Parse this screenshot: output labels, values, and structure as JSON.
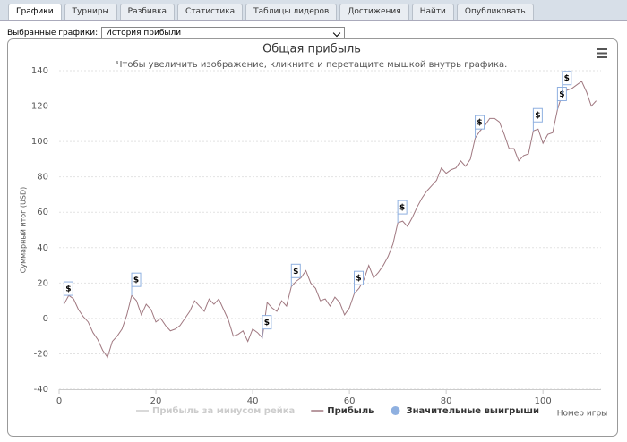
{
  "tabs": [
    "Графики",
    "Турниры",
    "Разбивка",
    "Статистика",
    "Таблицы лидеров",
    "Достижения",
    "Найти",
    "Опубликовать"
  ],
  "selector": {
    "label": "Выбранные графики:",
    "value": "История прибыли"
  },
  "chart_data": {
    "type": "line",
    "title": "Общая прибыль",
    "subtitle": "Чтобы увеличить изображение, кликните и перетащите мышкой внутрь графика.",
    "x_label": "Номер игры",
    "y_label": "Суммарный итог (USD)",
    "x": [
      1,
      2,
      3,
      4,
      5,
      6,
      7,
      8,
      9,
      10,
      11,
      12,
      13,
      14,
      15,
      16,
      17,
      18,
      19,
      20,
      21,
      22,
      23,
      24,
      25,
      26,
      27,
      28,
      29,
      30,
      31,
      32,
      33,
      34,
      35,
      36,
      37,
      38,
      39,
      40,
      41,
      42,
      43,
      44,
      45,
      46,
      47,
      48,
      49,
      50,
      51,
      52,
      53,
      54,
      55,
      56,
      57,
      58,
      59,
      60,
      61,
      62,
      63,
      64,
      65,
      66,
      67,
      68,
      69,
      70,
      71,
      72,
      73,
      74,
      75,
      76,
      77,
      78,
      79,
      80,
      81,
      82,
      83,
      84,
      85,
      86,
      87,
      88,
      89,
      90,
      91,
      92,
      93,
      94,
      95,
      96,
      97,
      98,
      99,
      100,
      101,
      102,
      103,
      104,
      105,
      106,
      107,
      108,
      109,
      110,
      111
    ],
    "series": [
      {
        "name": "Прибыль за минусом рейка",
        "color": "#cccccc",
        "visible": false
      },
      {
        "name": "Прибыль",
        "color": "#a07880",
        "values": [
          8,
          13,
          11,
          5,
          1,
          -2,
          -8,
          -12,
          -18,
          -22,
          -13,
          -10,
          -6,
          2,
          13,
          10,
          2,
          8,
          5,
          -2,
          0,
          -4,
          -7,
          -6,
          -4,
          0,
          4,
          10,
          7,
          4,
          11,
          8,
          11,
          5,
          -1,
          -10,
          -9,
          -7,
          -13,
          -6,
          -8,
          -11,
          9,
          6,
          4,
          10,
          7,
          18,
          21,
          23,
          27,
          20,
          17,
          10,
          11,
          7,
          12,
          9,
          2,
          6,
          14,
          17,
          22,
          30,
          23,
          26,
          30,
          35,
          42,
          54,
          55,
          52,
          57,
          63,
          68,
          72,
          75,
          78,
          85,
          82,
          84,
          85,
          89,
          86,
          90,
          102,
          106,
          109,
          113,
          113,
          111,
          104,
          96,
          96,
          89,
          92,
          93,
          106,
          107,
          99,
          104,
          105,
          118,
          127,
          129,
          130,
          132,
          134,
          128,
          120,
          123
        ]
      },
      {
        "name": "Значительные выигрыши",
        "type": "scatter",
        "color": "#8fb0e0",
        "flag_label": "$",
        "x": [
          1,
          15,
          42,
          48,
          61,
          70,
          86,
          98,
          103,
          104
        ],
        "values": [
          8,
          13,
          -11,
          18,
          14,
          54,
          102,
          106,
          118,
          127
        ]
      }
    ],
    "xlim": [
      0,
      112
    ],
    "ylim": [
      -40,
      140
    ],
    "xticks": [
      0,
      20,
      40,
      60,
      80,
      100
    ],
    "yticks": [
      -40,
      -20,
      0,
      20,
      40,
      60,
      80,
      100,
      120,
      140
    ],
    "grid": true
  }
}
